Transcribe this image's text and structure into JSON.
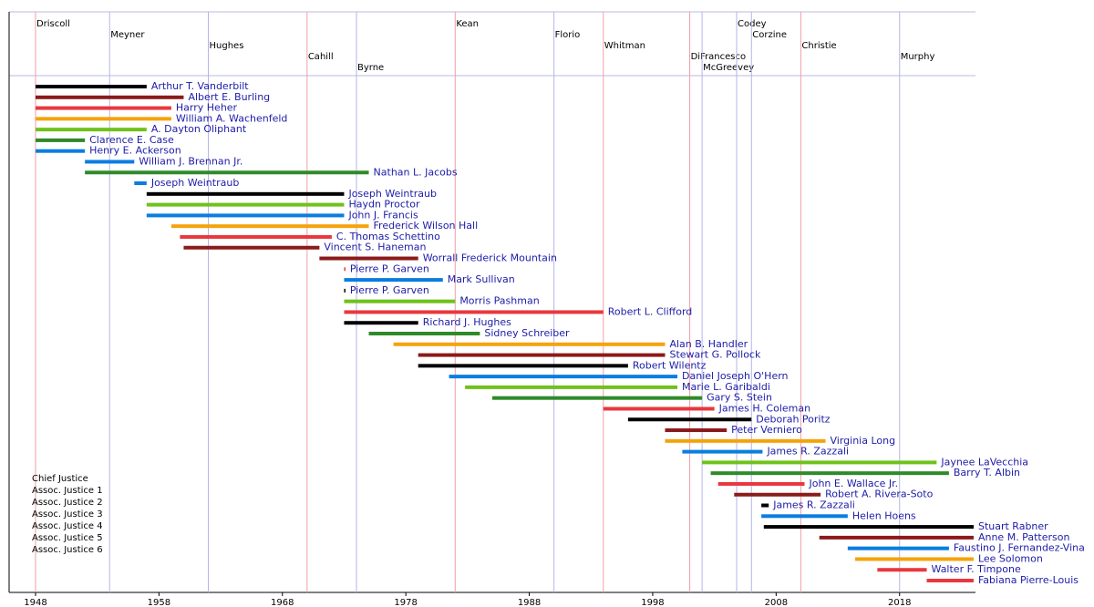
{
  "chart_data": {
    "type": "timeline",
    "xlim": [
      1945.86,
      2024.15
    ],
    "xticks": [
      1948,
      1958,
      1968,
      1978,
      1988,
      1998,
      2008,
      2018
    ],
    "governors": [
      {
        "name": "Driscoll",
        "start": 1948,
        "color": "#f2a0a8"
      },
      {
        "name": "Meyner",
        "start": 1954,
        "color": "#b4b4e8"
      },
      {
        "name": "Hughes",
        "start": 1962,
        "color": "#b4b4e8"
      },
      {
        "name": "Cahill",
        "start": 1970,
        "color": "#f2a0a8"
      },
      {
        "name": "Byrne",
        "start": 1974,
        "color": "#b4b4e8"
      },
      {
        "name": "Kean",
        "start": 1982,
        "color": "#f2a0a8"
      },
      {
        "name": "Florio",
        "start": 1990,
        "color": "#b4b4e8"
      },
      {
        "name": "Whitman",
        "start": 1994,
        "color": "#f2a0a8"
      },
      {
        "name": "DiFrancesco",
        "start": 2001,
        "color": "#f2a0a8"
      },
      {
        "name": "McGreevey",
        "start": 2002,
        "color": "#b4b4e8"
      },
      {
        "name": "Codey",
        "start": 2004.8,
        "color": "#b4b4e8"
      },
      {
        "name": "Corzine",
        "start": 2006,
        "color": "#b4b4e8"
      },
      {
        "name": "Christie",
        "start": 2010,
        "color": "#f2a0a8"
      },
      {
        "name": "Murphy",
        "start": 2018,
        "color": "#b4b4e8"
      }
    ],
    "legend": [
      "Chief Justice",
      "Assoc. Justice 1",
      "Assoc. Justice 2",
      "Assoc. Justice 3",
      "Assoc. Justice 4",
      "Assoc. Justice 5",
      "Assoc. Justice 6"
    ],
    "bars": [
      {
        "label": "Arthur T. Vanderbilt",
        "start": 1948,
        "end": 1957,
        "color": "#000000"
      },
      {
        "label": "Albert E. Burling",
        "start": 1948,
        "end": 1960,
        "color": "#8b1a1a"
      },
      {
        "label": "Harry Heher",
        "start": 1948,
        "end": 1959,
        "color": "#e8383d"
      },
      {
        "label": "William A. Wachenfeld",
        "start": 1948,
        "end": 1959,
        "color": "#f5a30a"
      },
      {
        "label": "A. Dayton Oliphant",
        "start": 1948,
        "end": 1957,
        "color": "#6fc21a"
      },
      {
        "label": "Clarence E. Case",
        "start": 1948,
        "end": 1952,
        "color": "#2f8a2a"
      },
      {
        "label": "Henry E. Ackerson",
        "start": 1948,
        "end": 1952,
        "color": "#0a7de0"
      },
      {
        "label": "William J. Brennan Jr.",
        "start": 1952,
        "end": 1956,
        "color": "#0a7de0"
      },
      {
        "label": "Nathan L. Jacobs",
        "start": 1952,
        "end": 1975,
        "color": "#2f8a2a"
      },
      {
        "label": "Joseph Weintraub",
        "start": 1956,
        "end": 1957,
        "color": "#0a7de0"
      },
      {
        "label": "Joseph Weintraub",
        "start": 1957,
        "end": 1973,
        "color": "#000000"
      },
      {
        "label": "Haydn Proctor",
        "start": 1957,
        "end": 1973,
        "color": "#6fc21a"
      },
      {
        "label": "John J. Francis",
        "start": 1957,
        "end": 1973,
        "color": "#0a7de0"
      },
      {
        "label": "Frederick Wilson Hall",
        "start": 1959,
        "end": 1975,
        "color": "#f5a30a"
      },
      {
        "label": "C. Thomas Schettino",
        "start": 1959.7,
        "end": 1972,
        "color": "#e8383d"
      },
      {
        "label": "Vincent S. Haneman",
        "start": 1960,
        "end": 1971,
        "color": "#8b1a1a"
      },
      {
        "label": "Worrall Frederick Mountain",
        "start": 1971,
        "end": 1979,
        "color": "#8b1a1a"
      },
      {
        "label": "Pierre P. Garven",
        "start": 1973,
        "end": 1973.1,
        "color": "#e8383d"
      },
      {
        "label": "Mark Sullivan",
        "start": 1973,
        "end": 1981,
        "color": "#0a7de0"
      },
      {
        "label": "Pierre P. Garven",
        "start": 1973,
        "end": 1973.1,
        "color": "#000000"
      },
      {
        "label": "Morris Pashman",
        "start": 1973,
        "end": 1982,
        "color": "#6fc21a"
      },
      {
        "label": "Robert L. Clifford",
        "start": 1973,
        "end": 1994,
        "color": "#e8383d"
      },
      {
        "label": "Richard J. Hughes",
        "start": 1973,
        "end": 1979,
        "color": "#000000"
      },
      {
        "label": "Sidney Schreiber",
        "start": 1975,
        "end": 1984,
        "color": "#2f8a2a"
      },
      {
        "label": "Alan B. Handler",
        "start": 1977,
        "end": 1999,
        "color": "#f5a30a"
      },
      {
        "label": "Stewart G. Pollock",
        "start": 1979,
        "end": 1999,
        "color": "#8b1a1a"
      },
      {
        "label": "Robert Wilentz",
        "start": 1979,
        "end": 1996,
        "color": "#000000"
      },
      {
        "label": "Daniel Joseph O'Hern",
        "start": 1981.5,
        "end": 2000,
        "color": "#0a7de0"
      },
      {
        "label": "Marie L. Garibaldi",
        "start": 1982.8,
        "end": 2000,
        "color": "#6fc21a"
      },
      {
        "label": "Gary S. Stein",
        "start": 1985,
        "end": 2002,
        "color": "#2f8a2a"
      },
      {
        "label": "James H. Coleman",
        "start": 1994,
        "end": 2003,
        "color": "#e8383d"
      },
      {
        "label": "Deborah Poritz",
        "start": 1996,
        "end": 2006,
        "color": "#000000"
      },
      {
        "label": "Peter Verniero",
        "start": 1999,
        "end": 2004,
        "color": "#8b1a1a"
      },
      {
        "label": "Virginia Long",
        "start": 1999,
        "end": 2012,
        "color": "#f5a30a"
      },
      {
        "label": "James R. Zazzali",
        "start": 2000.4,
        "end": 2006.9,
        "color": "#0a7de0"
      },
      {
        "label": "Jaynee LaVecchia",
        "start": 2002,
        "end": 2021,
        "color": "#6fc21a"
      },
      {
        "label": "Barry T. Albin",
        "start": 2002.7,
        "end": 2022,
        "color": "#2f8a2a"
      },
      {
        "label": "John E. Wallace Jr.",
        "start": 2003.3,
        "end": 2010.3,
        "color": "#e8383d"
      },
      {
        "label": "Robert A. Rivera-Soto",
        "start": 2004.6,
        "end": 2011.6,
        "color": "#8b1a1a"
      },
      {
        "label": "James R. Zazzali",
        "start": 2006.8,
        "end": 2007.4,
        "color": "#000000"
      },
      {
        "label": "Helen Hoens",
        "start": 2006.8,
        "end": 2013.8,
        "color": "#0a7de0"
      },
      {
        "label": "Stuart Rabner",
        "start": 2007,
        "end": 2024,
        "color": "#000000"
      },
      {
        "label": "Anne M. Patterson",
        "start": 2011.5,
        "end": 2024,
        "color": "#8b1a1a"
      },
      {
        "label": "Faustino J. Fernandez-Vina",
        "start": 2013.8,
        "end": 2022,
        "color": "#0a7de0"
      },
      {
        "label": "Lee Solomon",
        "start": 2014.4,
        "end": 2024,
        "color": "#f5a30a"
      },
      {
        "label": "Walter F. Timpone",
        "start": 2016.2,
        "end": 2020.2,
        "color": "#e8383d"
      },
      {
        "label": "Fabiana Pierre-Louis",
        "start": 2020.2,
        "end": 2024,
        "color": "#e8383d"
      }
    ]
  }
}
